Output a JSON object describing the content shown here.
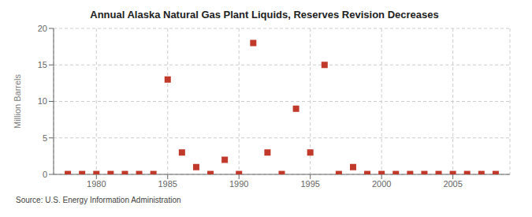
{
  "chart_data": {
    "type": "scatter",
    "title": "Annual Alaska Natural Gas Plant Liquids, Reserves Revision Decreases",
    "ylabel": "Million Barrels",
    "annotation": "Source: U.S. Energy Information Administration",
    "x": [
      1978,
      1979,
      1980,
      1981,
      1982,
      1983,
      1984,
      1985,
      1986,
      1987,
      1988,
      1989,
      1990,
      1991,
      1992,
      1993,
      1994,
      1995,
      1996,
      1997,
      1998,
      1999,
      2000,
      2001,
      2002,
      2003,
      2004,
      2005,
      2006,
      2007,
      2008
    ],
    "values": [
      0.05,
      0.05,
      0.05,
      0.05,
      0.05,
      0.05,
      0.05,
      13.0,
      3.0,
      1.0,
      0.05,
      2.0,
      0.05,
      18.0,
      3.0,
      0.05,
      9.0,
      3.0,
      15.0,
      0.05,
      1.0,
      0.05,
      0.05,
      0.05,
      0.05,
      0.05,
      0.05,
      0.05,
      0.05,
      0.05,
      0.05
    ],
    "color": "#c0392b",
    "marker": "square",
    "xlim": [
      1977,
      2009
    ],
    "ylim": [
      0,
      20
    ],
    "xticks": [
      1980,
      1985,
      1990,
      1995,
      2000,
      2005
    ],
    "yticks": [
      0,
      5,
      10,
      15,
      20
    ],
    "grid": true
  }
}
